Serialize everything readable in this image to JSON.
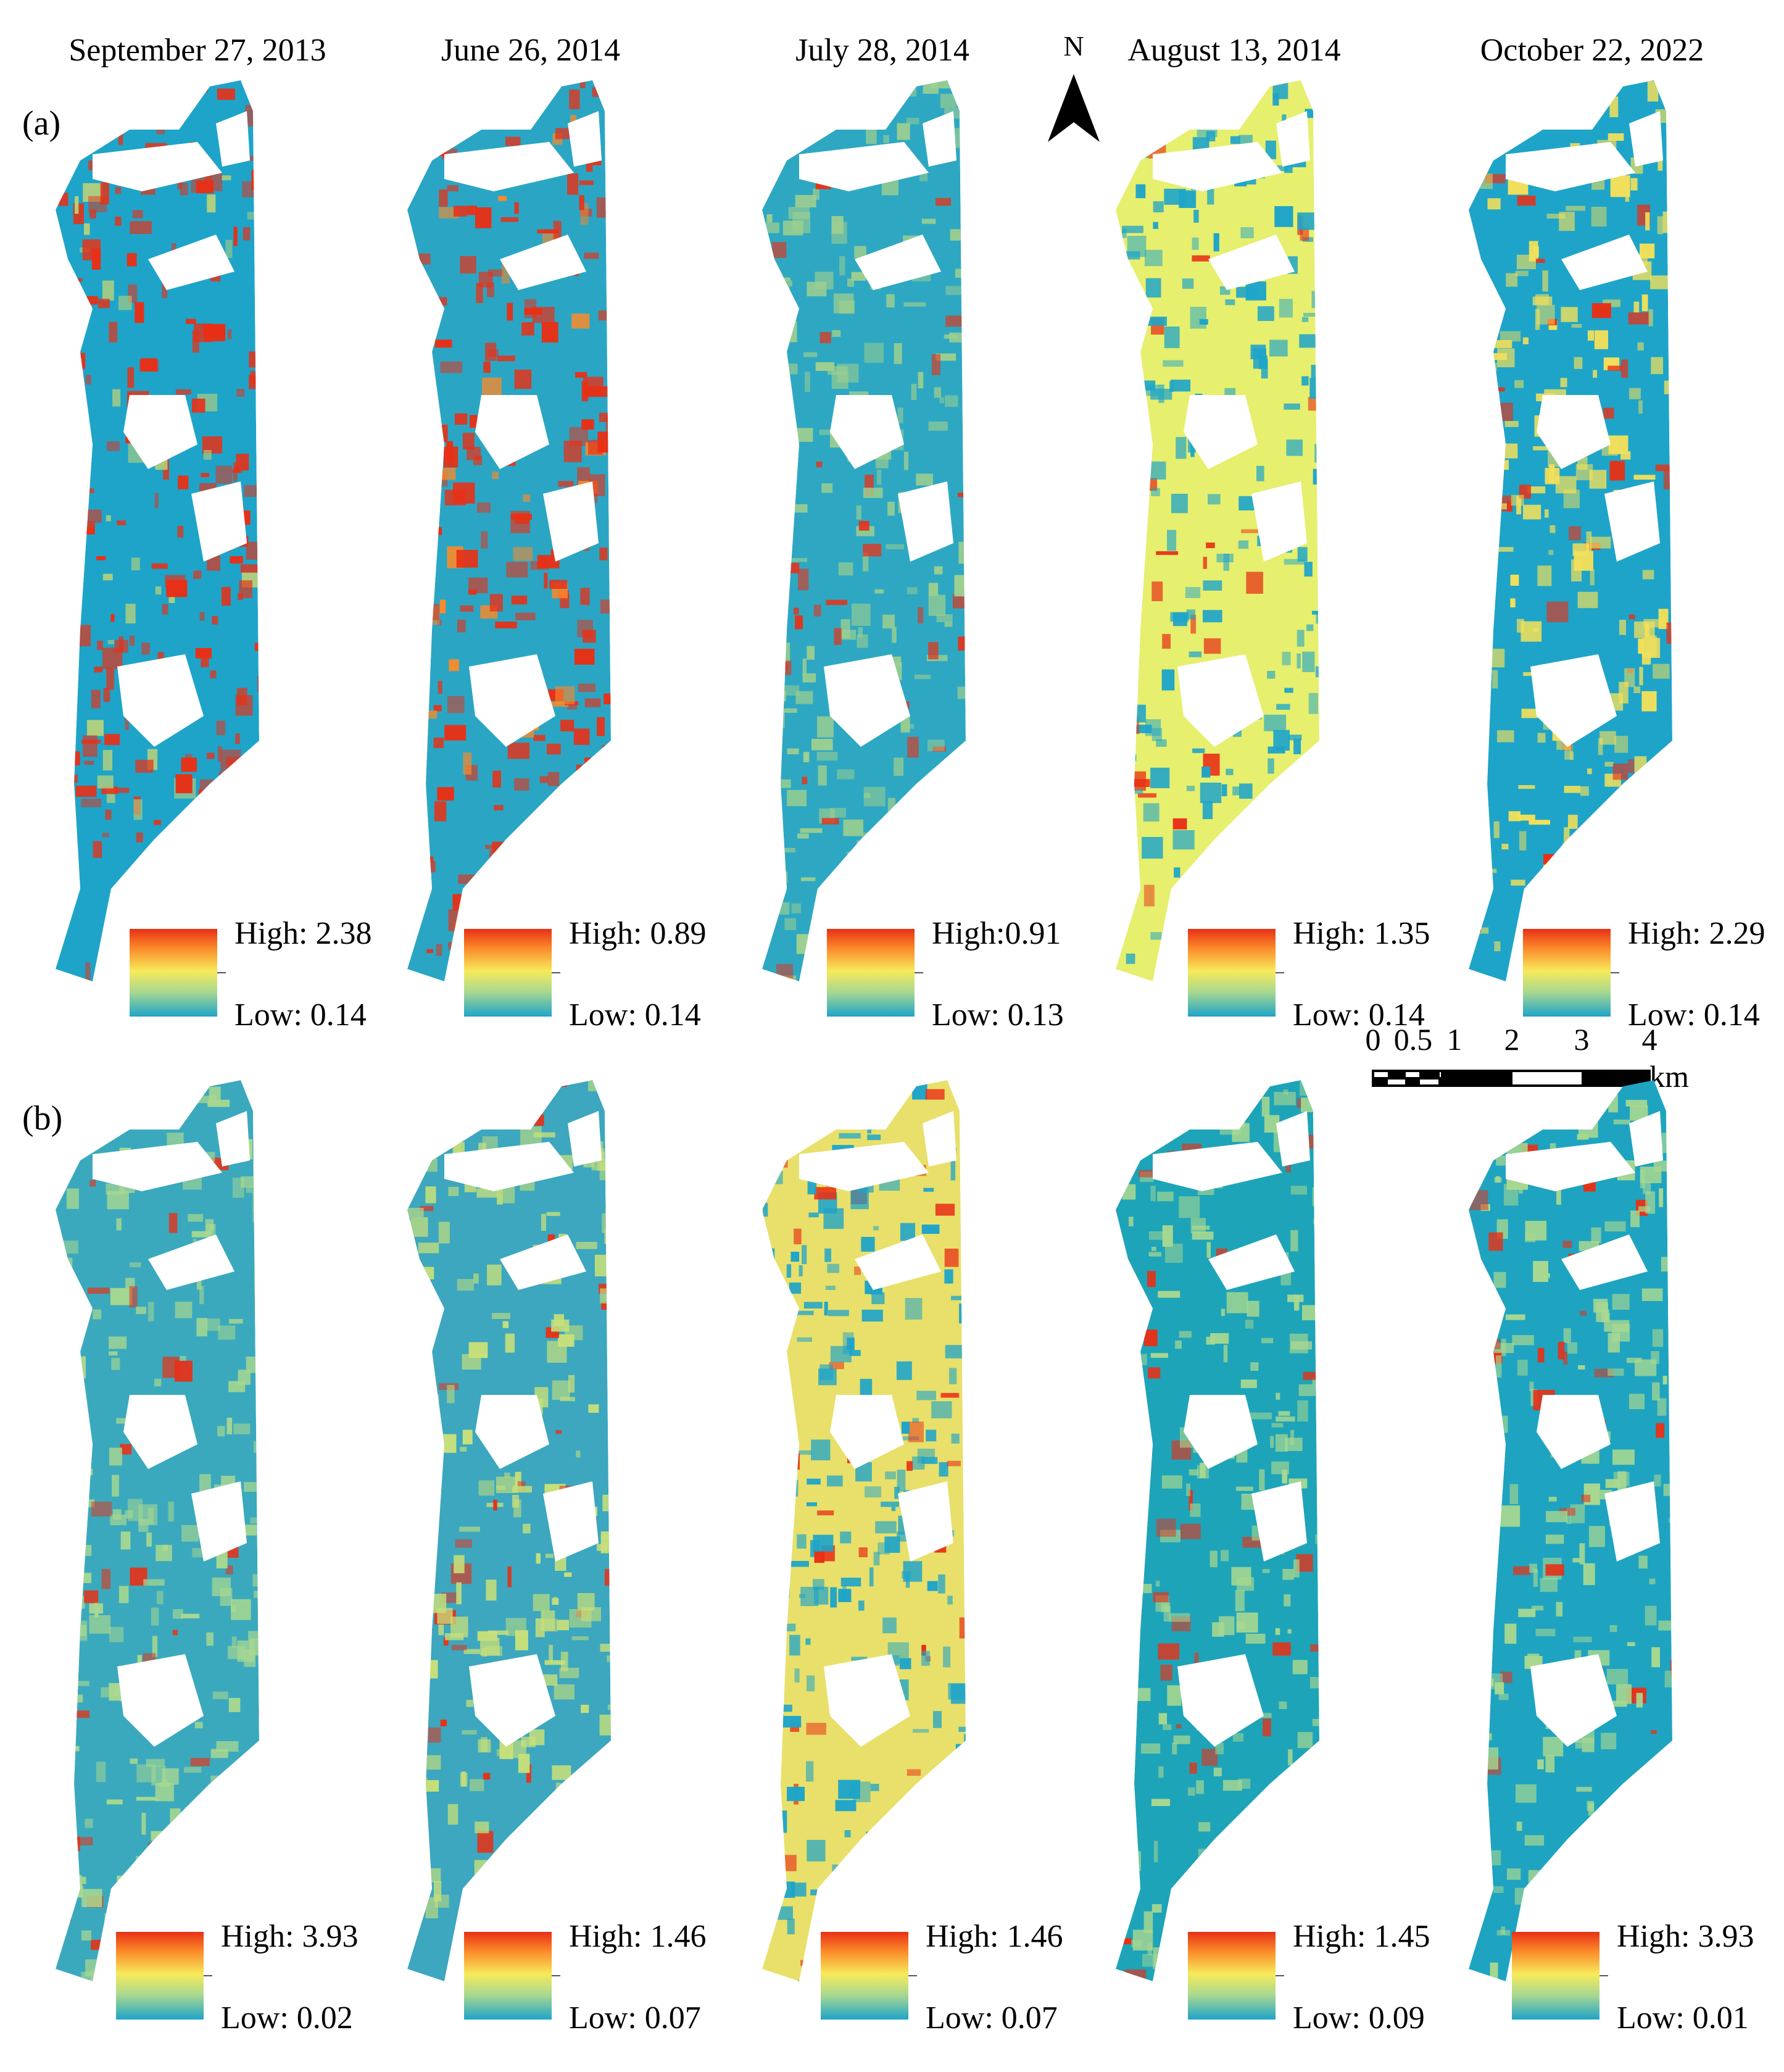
{
  "dates": [
    "September 27, 2013",
    "June 26, 2014",
    "July 28, 2014",
    "August 13, 2014",
    "October 22, 2022"
  ],
  "panel_labels": [
    "(a)",
    "(b)"
  ],
  "north_label": "N",
  "scale_bar": {
    "ticks": [
      "0",
      "0.5",
      "1",
      "2",
      "3",
      "4"
    ],
    "unit": "km"
  },
  "legend_colors": [
    "#e83016",
    "#fb8a2a",
    "#f7ea5a",
    "#a9d890",
    "#1ea4c9"
  ],
  "panels": {
    "a": [
      {
        "high": "High: 2.38",
        "low": "Low: 0.14",
        "base": "#1ea4c9",
        "hot": [
          "#e83016",
          "#b9d27a"
        ]
      },
      {
        "high": "High: 0.89",
        "low": "Low: 0.14",
        "base": "#2aa6c4",
        "hot": [
          "#e83016",
          "#fb8a2a"
        ]
      },
      {
        "high": "High:0.91",
        "low": "Low: 0.13",
        "base": "#2ea8c2",
        "hot": [
          "#9ecf8f",
          "#e83016"
        ]
      },
      {
        "high": "High: 1.35",
        "low": "Low: 0.14",
        "base": "#e6ef6e",
        "hot": [
          "#1ea4c9",
          "#e83016"
        ]
      },
      {
        "high": "High: 2.29",
        "low": "Low: 0.14",
        "base": "#1ea4c9",
        "hot": [
          "#f2e05a",
          "#e83016"
        ]
      }
    ],
    "b": [
      {
        "high": "High: 3.93",
        "low": "Low: 0.02",
        "base": "#3ba9bd",
        "hot": [
          "#a9d890",
          "#e83016"
        ]
      },
      {
        "high": "High: 1.46",
        "low": "Low: 0.07",
        "base": "#3ca7be",
        "hot": [
          "#c8e07a",
          "#e83016"
        ]
      },
      {
        "high": "High: 1.46",
        "low": "Low: 0.07",
        "base": "#e8e06a",
        "hot": [
          "#1ea4c9",
          "#e83016"
        ]
      },
      {
        "high": "High: 1.45",
        "low": "Low: 0.09",
        "base": "#1ea4b8",
        "hot": [
          "#a9d890",
          "#e83016"
        ]
      },
      {
        "high": "High: 3.93",
        "low": "Low: 0.01",
        "base": "#1ea4c0",
        "hot": [
          "#a9d890",
          "#e83016"
        ]
      }
    ]
  }
}
